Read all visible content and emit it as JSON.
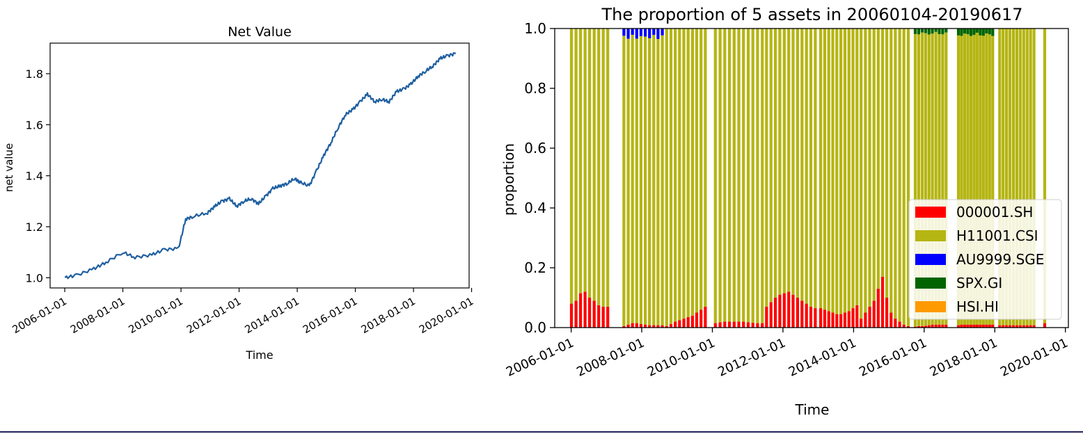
{
  "chart_data": [
    {
      "type": "line",
      "title": "Net Value",
      "xlabel": "Time",
      "ylabel": "net value",
      "x_ticks": [
        "2006-01-01",
        "2008-01-01",
        "2010-01-01",
        "2012-01-01",
        "2014-01-01",
        "2016-01-01",
        "2018-01-01",
        "2020-01-01"
      ],
      "y_ticks": [
        "1.0",
        "1.2",
        "1.4",
        "1.6",
        "1.8"
      ],
      "xlim": [
        "2005-07-01",
        "2019-12-01"
      ],
      "ylim": [
        0.96,
        1.92
      ],
      "grid": false,
      "series": [
        {
          "color": "#1f5fa0",
          "x": [
            "2006-01-04",
            "2006-06-01",
            "2007-01-01",
            "2007-06-01",
            "2008-01-01",
            "2008-06-01",
            "2009-01-01",
            "2009-06-01",
            "2009-12-01",
            "2010-03-01",
            "2010-06-01",
            "2010-12-01",
            "2011-03-01",
            "2011-06-01",
            "2011-09-01",
            "2011-12-01",
            "2012-03-01",
            "2012-06-01",
            "2012-09-01",
            "2012-12-01",
            "2013-03-01",
            "2013-06-01",
            "2013-09-01",
            "2013-12-01",
            "2014-02-01",
            "2014-06-01",
            "2014-09-01",
            "2014-12-01",
            "2015-03-01",
            "2015-06-01",
            "2015-09-01",
            "2015-12-01",
            "2016-03-01",
            "2016-06-01",
            "2016-09-01",
            "2016-12-01",
            "2017-03-01",
            "2017-06-01",
            "2017-09-01",
            "2017-12-01",
            "2018-03-01",
            "2018-06-01",
            "2018-09-01",
            "2018-12-01",
            "2019-03-01",
            "2019-06-17"
          ],
          "y": [
            1.0,
            1.01,
            1.035,
            1.06,
            1.1,
            1.08,
            1.09,
            1.11,
            1.115,
            1.23,
            1.24,
            1.255,
            1.28,
            1.3,
            1.31,
            1.28,
            1.3,
            1.31,
            1.29,
            1.32,
            1.35,
            1.36,
            1.37,
            1.39,
            1.375,
            1.36,
            1.42,
            1.48,
            1.53,
            1.59,
            1.64,
            1.66,
            1.69,
            1.72,
            1.69,
            1.7,
            1.69,
            1.73,
            1.74,
            1.76,
            1.79,
            1.81,
            1.83,
            1.86,
            1.87,
            1.88
          ]
        }
      ]
    },
    {
      "type": "bar",
      "stacked": true,
      "title": "The proportion of 5 assets in 20060104-20190617",
      "xlabel": "Time",
      "ylabel": "proportion",
      "x_ticks": [
        "2006-01-01",
        "2008-01-01",
        "2010-01-01",
        "2012-01-01",
        "2014-01-01",
        "2016-01-01",
        "2018-01-01",
        "2020-01-01"
      ],
      "y_ticks": [
        "0.0",
        "0.2",
        "0.4",
        "0.6",
        "0.8",
        "1.0"
      ],
      "xlim": [
        "2005-07-15",
        "2020-02-01"
      ],
      "ylim": [
        0,
        1
      ],
      "grid": false,
      "legend": "center-right",
      "groups": [
        {
          "from": "2006-01-04",
          "to": "2007-01-15",
          "n": 9,
          "sh": [
            0.08,
            0.09,
            0.115,
            0.12,
            0.1,
            0.09,
            0.075,
            0.07,
            0.07
          ],
          "au": 0,
          "spx": 0
        },
        {
          "from": "2007-07-01",
          "to": "2008-08-01",
          "n": 10,
          "sh": [
            0.005,
            0.01,
            0.015,
            0.015,
            0.012,
            0.01,
            0.008,
            0.008,
            0.008,
            0.008
          ],
          "au": 0.035,
          "spx": 0
        },
        {
          "from": "2008-09-15",
          "to": "2009-10-20",
          "n": 10,
          "sh": [
            0.005,
            0.012,
            0.02,
            0.025,
            0.03,
            0.035,
            0.04,
            0.05,
            0.06,
            0.07
          ],
          "au": 0,
          "spx": 0
        },
        {
          "from": "2010-02-01",
          "to": "2011-06-01",
          "n": 11,
          "sh": [
            0.015,
            0.018,
            0.02,
            0.02,
            0.02,
            0.02,
            0.02,
            0.018,
            0.016,
            0.015,
            0.015
          ],
          "au": 0,
          "spx": 0
        },
        {
          "from": "2011-07-15",
          "to": "2012-12-01",
          "n": 12,
          "sh": [
            0.07,
            0.085,
            0.1,
            0.11,
            0.115,
            0.12,
            0.11,
            0.1,
            0.09,
            0.08,
            0.07,
            0.065
          ],
          "au": 0,
          "spx": 0
        },
        {
          "from": "2013-01-25",
          "to": "2014-02-05",
          "n": 10,
          "sh": [
            0.065,
            0.06,
            0.055,
            0.05,
            0.045,
            0.045,
            0.05,
            0.055,
            0.065,
            0.075
          ],
          "au": 0,
          "spx": 0
        },
        {
          "from": "2014-03-20",
          "to": "2015-07-20",
          "n": 12,
          "sh": [
            0.03,
            0.05,
            0.07,
            0.09,
            0.13,
            0.17,
            0.1,
            0.05,
            0.03,
            0.02,
            0.01,
            0.005
          ],
          "au": 0,
          "spx": 0
        },
        {
          "from": "2015-10-01",
          "to": "2016-08-15",
          "n": 10,
          "sh": [
            0.003,
            0.005,
            0.005,
            0.006,
            0.008,
            0.01,
            0.01,
            0.01,
            0.01,
            0.01
          ],
          "au": 0,
          "spx": 0.02
        },
        {
          "from": "2016-12-20",
          "to": "2017-12-10",
          "n": 12,
          "sh": [
            0.008,
            0.01,
            0.01,
            0.01,
            0.01,
            0.01,
            0.01,
            0.01,
            0.01,
            0.01,
            0.01,
            0.01
          ],
          "au": 0,
          "spx": 0.025
        },
        {
          "from": "2018-02-20",
          "to": "2019-02-10",
          "n": 11,
          "sh": [
            0.008,
            0.008,
            0.008,
            0.008,
            0.008,
            0.008,
            0.008,
            0.008,
            0.008,
            0.008,
            0.008
          ],
          "au": 0,
          "spx": 0
        },
        {
          "from": "2019-06-01",
          "to": "2019-06-17",
          "n": 1,
          "sh": [
            0.015
          ],
          "au": 0,
          "spx": 0
        }
      ],
      "series": [
        {
          "name": "000001.SH",
          "color": "#ff0000"
        },
        {
          "name": "H11001.CSI",
          "color": "#b5b513"
        },
        {
          "name": "AU9999.SGE",
          "color": "#0000ff"
        },
        {
          "name": "SPX.GI",
          "color": "#006400"
        },
        {
          "name": "HSI.HI",
          "color": "#ff9900"
        }
      ]
    }
  ]
}
